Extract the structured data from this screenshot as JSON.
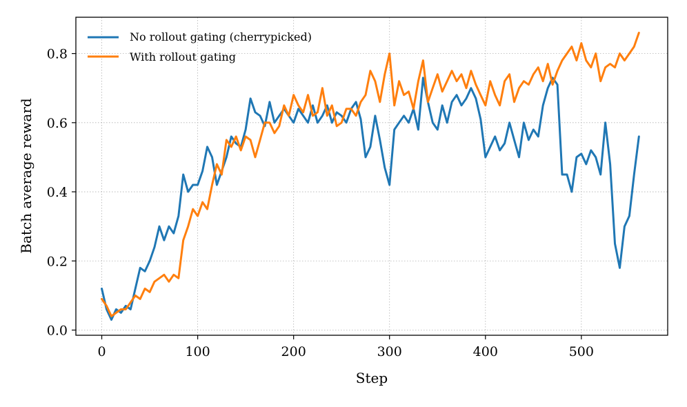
{
  "chart_data": {
    "type": "line",
    "title": "",
    "xlabel": "Step",
    "ylabel": "Batch average reward",
    "xlim": [
      -27,
      590
    ],
    "ylim": [
      -0.015,
      0.905
    ],
    "xticks": [
      0,
      100,
      200,
      300,
      400,
      500
    ],
    "yticks": [
      0.0,
      0.2,
      0.4,
      0.6,
      0.8
    ],
    "xtick_labels": [
      "0",
      "100",
      "200",
      "300",
      "400",
      "500"
    ],
    "ytick_labels": [
      "0.0",
      "0.2",
      "0.4",
      "0.6",
      "0.8"
    ],
    "grid": true,
    "legend_position": "top-left",
    "series": [
      {
        "name": "No rollout gating (cherrypicked)",
        "color": "#1f77b4",
        "x": [
          0,
          5,
          10,
          15,
          20,
          25,
          30,
          35,
          40,
          45,
          50,
          55,
          60,
          65,
          70,
          75,
          80,
          85,
          90,
          95,
          100,
          105,
          110,
          115,
          120,
          125,
          130,
          135,
          140,
          145,
          150,
          155,
          160,
          165,
          170,
          175,
          180,
          185,
          190,
          195,
          200,
          205,
          210,
          215,
          220,
          225,
          230,
          235,
          240,
          245,
          250,
          255,
          260,
          265,
          270,
          275,
          280,
          285,
          290,
          295,
          300,
          305,
          310,
          315,
          320,
          325,
          330,
          335,
          340,
          345,
          350,
          355,
          360,
          365,
          370,
          375,
          380,
          385,
          390,
          395,
          400,
          405,
          410,
          415,
          420,
          425,
          430,
          435,
          440,
          445,
          450,
          455,
          460,
          465,
          470,
          475,
          480,
          485,
          490,
          495,
          500,
          505,
          510,
          515,
          520,
          525,
          530,
          535,
          540,
          545,
          550,
          555,
          560
        ],
        "values": [
          0.12,
          0.06,
          0.03,
          0.06,
          0.05,
          0.07,
          0.06,
          0.12,
          0.18,
          0.17,
          0.2,
          0.24,
          0.3,
          0.26,
          0.3,
          0.28,
          0.33,
          0.45,
          0.4,
          0.42,
          0.42,
          0.46,
          0.53,
          0.5,
          0.42,
          0.46,
          0.5,
          0.56,
          0.54,
          0.53,
          0.58,
          0.67,
          0.63,
          0.62,
          0.59,
          0.66,
          0.6,
          0.62,
          0.64,
          0.62,
          0.6,
          0.64,
          0.62,
          0.6,
          0.65,
          0.6,
          0.62,
          0.65,
          0.6,
          0.63,
          0.62,
          0.6,
          0.64,
          0.66,
          0.61,
          0.5,
          0.53,
          0.62,
          0.55,
          0.47,
          0.42,
          0.58,
          0.6,
          0.62,
          0.6,
          0.64,
          0.58,
          0.73,
          0.66,
          0.6,
          0.58,
          0.65,
          0.6,
          0.66,
          0.68,
          0.65,
          0.67,
          0.7,
          0.67,
          0.61,
          0.5,
          0.53,
          0.56,
          0.52,
          0.54,
          0.6,
          0.55,
          0.5,
          0.6,
          0.55,
          0.58,
          0.56,
          0.65,
          0.7,
          0.73,
          0.71,
          0.45,
          0.45,
          0.4,
          0.5,
          0.51,
          0.48,
          0.52,
          0.5,
          0.45,
          0.6,
          0.48,
          0.25,
          0.18,
          0.3,
          0.33,
          0.45,
          0.56
        ]
      },
      {
        "name": "With rollout gating",
        "color": "#ff7f0e",
        "x": [
          0,
          5,
          10,
          15,
          20,
          25,
          30,
          35,
          40,
          45,
          50,
          55,
          60,
          65,
          70,
          75,
          80,
          85,
          90,
          95,
          100,
          105,
          110,
          115,
          120,
          125,
          130,
          135,
          140,
          145,
          150,
          155,
          160,
          165,
          170,
          175,
          180,
          185,
          190,
          195,
          200,
          205,
          210,
          215,
          220,
          225,
          230,
          235,
          240,
          245,
          250,
          255,
          260,
          265,
          270,
          275,
          280,
          285,
          290,
          295,
          300,
          305,
          310,
          315,
          320,
          325,
          330,
          335,
          340,
          345,
          350,
          355,
          360,
          365,
          370,
          375,
          380,
          385,
          390,
          395,
          400,
          405,
          410,
          415,
          420,
          425,
          430,
          435,
          440,
          445,
          450,
          455,
          460,
          465,
          470,
          475,
          480,
          485,
          490,
          495,
          500,
          505,
          510,
          515,
          520,
          525,
          530,
          535,
          540,
          545,
          550,
          555,
          560
        ],
        "values": [
          0.09,
          0.07,
          0.04,
          0.05,
          0.06,
          0.06,
          0.08,
          0.1,
          0.09,
          0.12,
          0.11,
          0.14,
          0.15,
          0.16,
          0.14,
          0.16,
          0.15,
          0.26,
          0.3,
          0.35,
          0.33,
          0.37,
          0.35,
          0.42,
          0.48,
          0.45,
          0.55,
          0.53,
          0.56,
          0.52,
          0.56,
          0.55,
          0.5,
          0.55,
          0.6,
          0.6,
          0.57,
          0.59,
          0.65,
          0.62,
          0.68,
          0.65,
          0.63,
          0.68,
          0.62,
          0.63,
          0.7,
          0.62,
          0.65,
          0.59,
          0.6,
          0.64,
          0.64,
          0.62,
          0.66,
          0.68,
          0.75,
          0.72,
          0.66,
          0.74,
          0.8,
          0.65,
          0.72,
          0.68,
          0.69,
          0.64,
          0.72,
          0.78,
          0.66,
          0.7,
          0.74,
          0.69,
          0.72,
          0.75,
          0.72,
          0.74,
          0.7,
          0.75,
          0.71,
          0.68,
          0.65,
          0.72,
          0.68,
          0.65,
          0.72,
          0.74,
          0.66,
          0.7,
          0.72,
          0.71,
          0.74,
          0.76,
          0.72,
          0.77,
          0.71,
          0.75,
          0.78,
          0.8,
          0.82,
          0.78,
          0.83,
          0.78,
          0.76,
          0.8,
          0.72,
          0.76,
          0.77,
          0.76,
          0.8,
          0.78,
          0.8,
          0.82,
          0.86
        ]
      }
    ]
  }
}
